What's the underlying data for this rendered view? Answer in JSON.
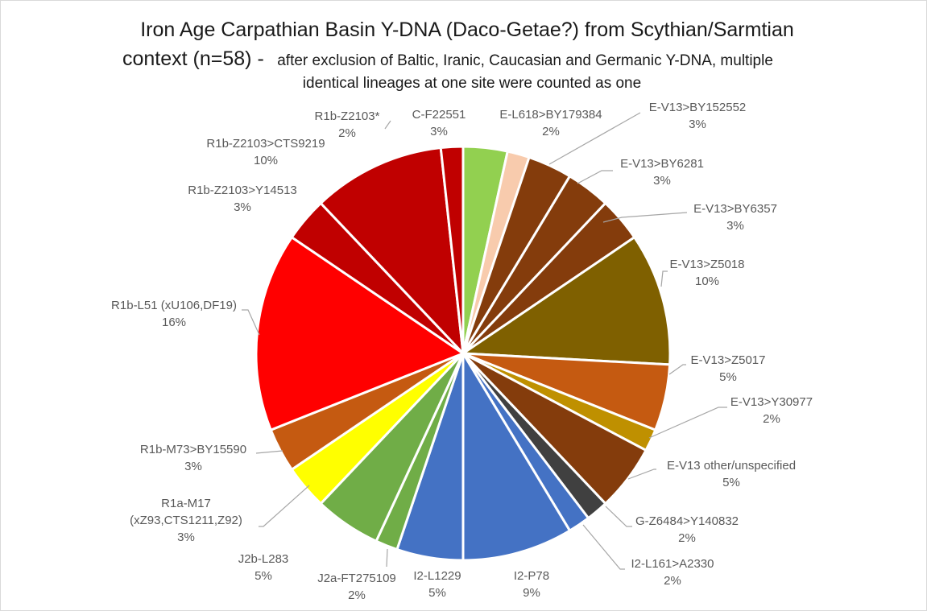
{
  "chart_data": {
    "type": "pie",
    "title_lines": [
      "Iron Age Carpathian Basin Y-DNA (Daco-Getae?) from Scythian/Sarmtian",
      "context (n=58) -",
      "after exclusion of Baltic, Iranic, Caucasian and Germanic Y-DNA, multiple",
      "identical lineages at one site were counted as one"
    ],
    "start_angle_deg": 0,
    "direction": "clockwise",
    "slices": [
      {
        "label": "C-F22551",
        "pct_label": "3%",
        "value": 2,
        "color": "#92d050"
      },
      {
        "label": "E-L618>BY179384",
        "pct_label": "2%",
        "value": 1,
        "color": "#f8cbad"
      },
      {
        "label": "E-V13>BY152552",
        "pct_label": "3%",
        "value": 2,
        "color": "#843c0c"
      },
      {
        "label": "E-V13>BY6281",
        "pct_label": "3%",
        "value": 2,
        "color": "#843c0c"
      },
      {
        "label": "E-V13>BY6357",
        "pct_label": "3%",
        "value": 2,
        "color": "#843c0c"
      },
      {
        "label": "E-V13>Z5018",
        "pct_label": "10%",
        "value": 6,
        "color": "#7f6000"
      },
      {
        "label": "E-V13>Z5017",
        "pct_label": "5%",
        "value": 3,
        "color": "#c55a11"
      },
      {
        "label": "E-V13>Y30977",
        "pct_label": "2%",
        "value": 1,
        "color": "#bf9000"
      },
      {
        "label": "E-V13 other/unspecified",
        "pct_label": "5%",
        "value": 3,
        "color": "#843c0c"
      },
      {
        "label": "G-Z6484>Y140832",
        "pct_label": "2%",
        "value": 1,
        "color": "#404040"
      },
      {
        "label": "I2-L161>A2330",
        "pct_label": "2%",
        "value": 1,
        "color": "#4472c4"
      },
      {
        "label": "I2-P78",
        "pct_label": "9%",
        "value": 5,
        "color": "#4472c4"
      },
      {
        "label": "I2-L1229",
        "pct_label": "5%",
        "value": 3,
        "color": "#4472c4"
      },
      {
        "label": "J2a-FT275109",
        "pct_label": "2%",
        "value": 1,
        "color": "#70ad47"
      },
      {
        "label": "J2b-L283",
        "pct_label": "5%",
        "value": 3,
        "color": "#70ad47"
      },
      {
        "label": "R1a-M17 (xZ93,CTS1211,Z92)",
        "pct_label": "3%",
        "value": 2,
        "color": "#ffff00"
      },
      {
        "label": "R1b-M73>BY15590",
        "pct_label": "3%",
        "value": 2,
        "color": "#c55a11"
      },
      {
        "label": "R1b-L51 (xU106,DF19)",
        "pct_label": "16%",
        "value": 9,
        "color": "#ff0000"
      },
      {
        "label": "R1b-Z2103>Y14513",
        "pct_label": "3%",
        "value": 2,
        "color": "#c00000"
      },
      {
        "label": "R1b-Z2103>CTS9219",
        "pct_label": "10%",
        "value": 6,
        "color": "#c00000"
      },
      {
        "label": "R1b-Z2103*",
        "pct_label": "2%",
        "value": 1,
        "color": "#c00000"
      }
    ]
  }
}
